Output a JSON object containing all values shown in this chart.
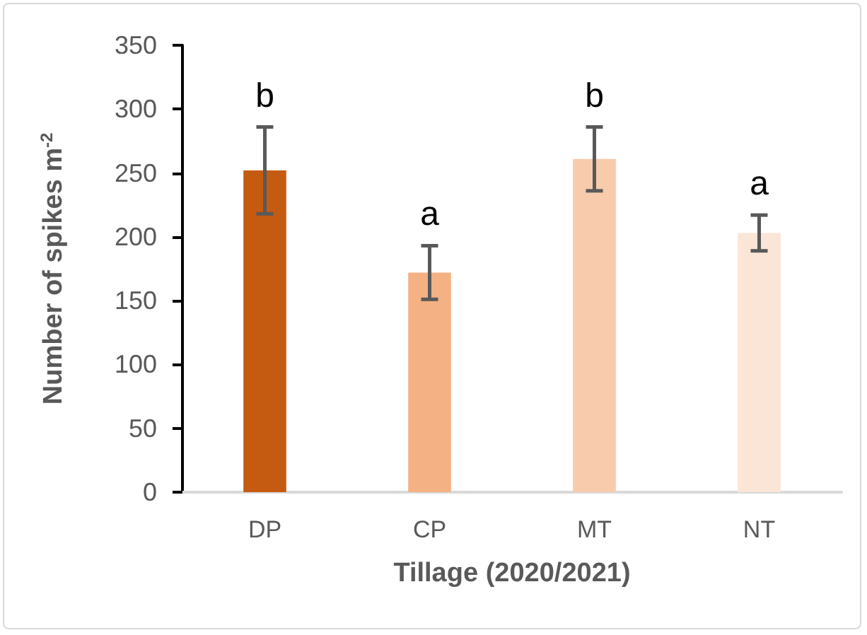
{
  "chart_data": {
    "type": "bar",
    "xlabel": "Tillage (2020/2021)",
    "ylabel": "Number of spikes m$^{-2}$",
    "categories": [
      "DP",
      "CP",
      "MT",
      "NT"
    ],
    "values": [
      252,
      172,
      261,
      203
    ],
    "colors": [
      "#c55a11",
      "#f4b183",
      "#f8cbad",
      "#fbe5d6"
    ],
    "errors": [
      34,
      21,
      25,
      14
    ],
    "ylim": [
      0,
      350
    ],
    "yticks": [
      0,
      50,
      100,
      150,
      200,
      250,
      300,
      350
    ],
    "grid": false,
    "annotations": [
      "b",
      "a",
      "b",
      "a"
    ]
  }
}
